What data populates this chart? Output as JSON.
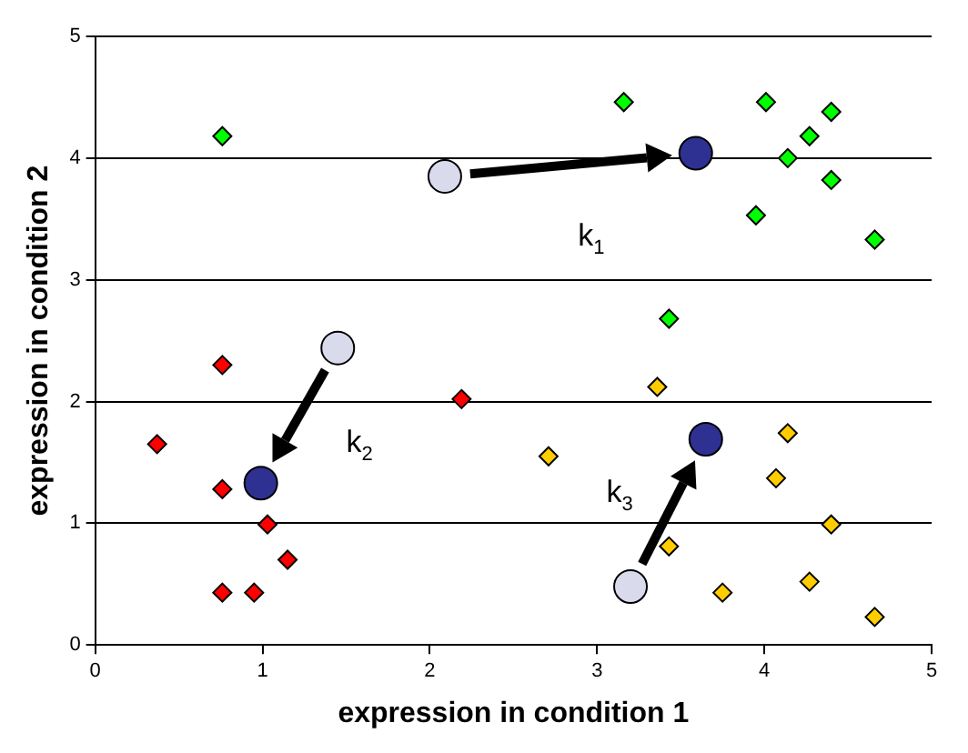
{
  "chart_data": {
    "type": "scatter",
    "xlabel": "expression in condition 1",
    "ylabel": "expression in condition 2",
    "xlim": [
      0,
      5
    ],
    "xticks": [
      0,
      1,
      2,
      3,
      4,
      5
    ],
    "ylim": [
      0,
      5
    ],
    "yticks": [
      0,
      1,
      2,
      3,
      4,
      5
    ],
    "grid": "y",
    "legend": false,
    "series": [
      {
        "color": "#ff0000",
        "marker": "diamond",
        "x": [
          0.37,
          0.76,
          0.76,
          1.03,
          1.15,
          0.76,
          0.95,
          2.19
        ],
        "values": [
          1.65,
          2.3,
          1.28,
          0.99,
          0.7,
          0.43,
          0.43,
          2.02
        ]
      },
      {
        "color": "#00ff00",
        "marker": "diamond",
        "x": [
          0.76,
          3.16,
          4.01,
          4.4,
          4.27,
          4.14,
          4.4,
          3.95,
          4.66,
          3.43
        ],
        "values": [
          4.18,
          4.46,
          4.46,
          4.38,
          4.18,
          4.0,
          3.82,
          3.53,
          3.33,
          2.68
        ]
      },
      {
        "color": "#ffcc00",
        "marker": "diamond",
        "x": [
          3.36,
          2.71,
          4.14,
          4.07,
          4.4,
          3.43,
          3.75,
          4.27,
          4.66
        ],
        "values": [
          2.12,
          1.55,
          1.74,
          1.37,
          0.99,
          0.81,
          0.43,
          0.52,
          0.23
        ]
      },
      {
        "color": "#d9dbec",
        "marker": "circle",
        "x": [
          2.09,
          1.45,
          3.2
        ],
        "values": [
          3.85,
          2.44,
          0.48
        ]
      },
      {
        "color": "#2e3192",
        "marker": "circle",
        "x": [
          3.59,
          0.99,
          3.65
        ],
        "values": [
          4.04,
          1.33,
          1.69
        ]
      }
    ],
    "annotations": [
      "k$_{1}$",
      "k$_{2}$",
      "k$_{3}$"
    ]
  }
}
